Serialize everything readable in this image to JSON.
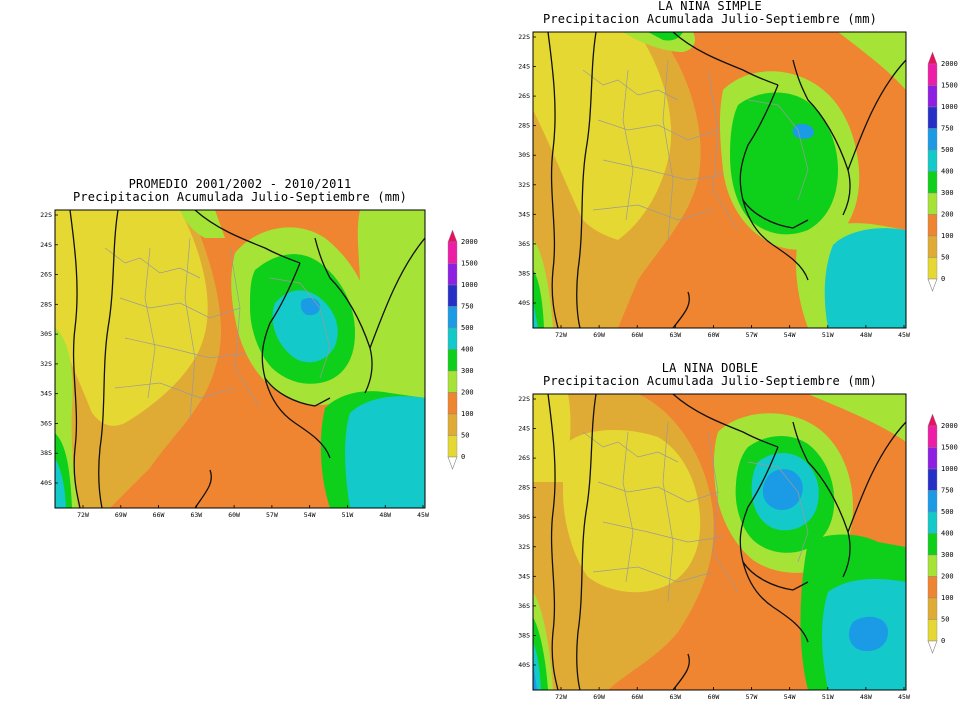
{
  "colors": {
    "bin_0": "#e6d832",
    "bin_50": "#e0ab35",
    "bin_100": "#ef8431",
    "bin_200": "#a6e337",
    "bin_300": "#0ed01b",
    "bin_400": "#13c9c9",
    "bin_500": "#1b9be6",
    "bin_750": "#2730c6",
    "bin_1000": "#8d1ee2",
    "bin_1500": "#ee1da7",
    "bin_2000": "#e81061"
  },
  "legend": {
    "labels": [
      "2000",
      "1500",
      "1000",
      "750",
      "500",
      "400",
      "300",
      "200",
      "100",
      "50",
      "0"
    ]
  },
  "axes": {
    "lat_labels": [
      "22S",
      "24S",
      "26S",
      "28S",
      "30S",
      "32S",
      "34S",
      "36S",
      "38S",
      "40S"
    ],
    "lon_labels": [
      "72W",
      "69W",
      "66W",
      "63W",
      "60W",
      "57W",
      "54W",
      "51W",
      "48W",
      "45W"
    ]
  },
  "panels": [
    {
      "id": "promedio",
      "title_line1": "PROMEDIO 2001/2002 - 2010/2011",
      "title_line2": "Precipitacion Acumulada Julio-Septiembre (mm)"
    },
    {
      "id": "nina_simple",
      "title_line1": "LA NINA SIMPLE",
      "title_line2": "Precipitacion Acumulada Julio-Septiembre (mm)"
    },
    {
      "id": "nina_doble",
      "title_line1": "LA NINA DOBLE",
      "title_line2": "Precipitacion Acumulada Julio-Septiembre (mm)"
    }
  ]
}
